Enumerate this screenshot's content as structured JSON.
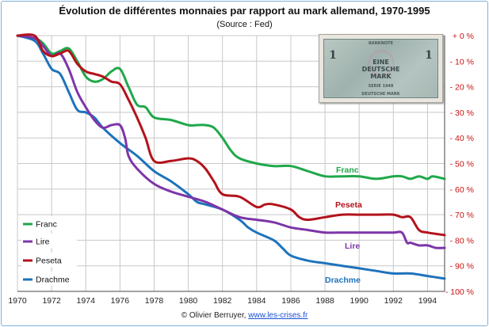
{
  "header": {
    "title": "Évolution de différentes monnaies par rapport au mark allemand, 1970-1995",
    "subtitle": "(Source : Fed)"
  },
  "footer": {
    "credit": "© Olivier Berruyer, ",
    "link": "www.les-crises.fr"
  },
  "banknote": {
    "header_text": "BANKNOTE",
    "line1": "EINE",
    "line2": "DEUTSCHE",
    "line3": "MARK",
    "series": "SERIE 1948",
    "bottom_text": "DEUTSCHE MARK",
    "numeral": "1"
  },
  "colors": {
    "Franc": "#1fa84a",
    "Lire": "#7d35a8",
    "Peseta": "#b3121b",
    "Drachme": "#1e73bb",
    "axis_right": "#cc1111",
    "grid": "#c8c8c8"
  },
  "chart_data": {
    "type": "line",
    "title": "Évolution de différentes monnaies par rapport au mark allemand, 1970-1995",
    "subtitle": "(Source : Fed)",
    "xlabel": "",
    "ylabel": "",
    "xlim": [
      1970,
      1995
    ],
    "ylim": [
      -100,
      0
    ],
    "grid": true,
    "legend_position": "left",
    "x_ticks": [
      "1970",
      "1972",
      "1974",
      "1976",
      "1978",
      "1980",
      "1982",
      "1984",
      "1986",
      "1988",
      "1990",
      "1992",
      "1994"
    ],
    "y_ticks": [
      "+ 0 %",
      "- 10 %",
      "- 20 %",
      "- 30 %",
      "- 40 %",
      "- 50 %",
      "- 60 %",
      "- 70 %",
      "- 80 %",
      "- 90 %",
      "- 100 %"
    ],
    "y_tick_values": [
      0,
      -10,
      -20,
      -30,
      -40,
      -50,
      -60,
      -70,
      -80,
      -90,
      -100
    ],
    "legend": [
      "Franc",
      "Lire",
      "Peseta",
      "Drachme"
    ],
    "series": [
      {
        "name": "Franc",
        "x": [
          1970,
          1971,
          1971.5,
          1972,
          1972.5,
          1973,
          1973.5,
          1974,
          1974.5,
          1975,
          1975.5,
          1976,
          1976.5,
          1977,
          1977.5,
          1978,
          1979,
          1980,
          1980.5,
          1981,
          1981.5,
          1982,
          1982.5,
          1983,
          1984,
          1985,
          1986,
          1987,
          1988,
          1989,
          1990,
          1991,
          1992,
          1992.5,
          1993,
          1993.5,
          1994,
          1994.3,
          1995
        ],
        "y": [
          0,
          -1,
          -3,
          -7,
          -6,
          -5,
          -10,
          -16,
          -18,
          -17,
          -14,
          -13,
          -20,
          -27,
          -28,
          -32,
          -33,
          -35,
          -35,
          -35,
          -36,
          -40,
          -45,
          -48,
          -50,
          -51,
          -51,
          -53,
          -55,
          -55,
          -55,
          -56,
          -55,
          -55,
          -56,
          -55,
          -56,
          -55,
          -56
        ]
      },
      {
        "name": "Lire",
        "x": [
          1970,
          1971,
          1971.5,
          1972,
          1972.5,
          1973,
          1973.5,
          1974,
          1974.5,
          1975,
          1975.5,
          1976,
          1976.3,
          1976.5,
          1977,
          1978,
          1979,
          1980,
          1981,
          1982,
          1983,
          1984,
          1985,
          1986,
          1987,
          1988,
          1989,
          1990,
          1991,
          1992,
          1992.5,
          1992.8,
          1993,
          1993.5,
          1994,
          1994.5,
          1995
        ],
        "y": [
          0,
          -1,
          -4,
          -8,
          -7,
          -13,
          -22,
          -28,
          -33,
          -36,
          -35,
          -35,
          -40,
          -47,
          -52,
          -58,
          -61,
          -63,
          -65,
          -68,
          -71,
          -72,
          -73,
          -75,
          -76,
          -77,
          -77,
          -77,
          -77,
          -77,
          -77,
          -81,
          -81,
          -82,
          -82,
          -83,
          -83
        ]
      },
      {
        "name": "Peseta",
        "x": [
          1970,
          1971,
          1971.5,
          1972,
          1972.5,
          1973,
          1973.5,
          1974,
          1974.5,
          1975,
          1975.5,
          1976,
          1976.5,
          1977,
          1977.5,
          1978,
          1979,
          1980,
          1980.5,
          1981,
          1981.5,
          1982,
          1983,
          1984,
          1984.5,
          1985,
          1986,
          1986.5,
          1987,
          1988,
          1989,
          1990,
          1991,
          1992,
          1992.5,
          1993,
          1993.5,
          1994,
          1995
        ],
        "y": [
          0,
          0,
          -6,
          -8,
          -7,
          -6,
          -11,
          -14,
          -15,
          -16,
          -18,
          -19,
          -25,
          -32,
          -40,
          -49,
          -49,
          -48,
          -49,
          -52,
          -57,
          -62,
          -63,
          -67,
          -66,
          -66,
          -68,
          -71,
          -72,
          -71,
          -70,
          -70,
          -70,
          -70,
          -71,
          -71,
          -76,
          -77,
          -78
        ]
      },
      {
        "name": "Drachme",
        "x": [
          1970,
          1971,
          1971.5,
          1972,
          1972.5,
          1973,
          1973.5,
          1974,
          1974.5,
          1975,
          1976,
          1977,
          1978,
          1979,
          1980,
          1980.5,
          1981,
          1982,
          1983,
          1983.5,
          1984,
          1985,
          1985.5,
          1986,
          1987,
          1988,
          1989,
          1990,
          1991,
          1992,
          1993,
          1994,
          1995
        ],
        "y": [
          0,
          -2,
          -7,
          -13,
          -15,
          -22,
          -29,
          -30,
          -32,
          -36,
          -42,
          -47,
          -53,
          -57,
          -62,
          -65,
          -66,
          -68,
          -72,
          -75,
          -77,
          -80,
          -83,
          -86,
          -88,
          -89,
          -90,
          -91,
          -92,
          -93,
          -93,
          -94,
          -95
        ]
      }
    ],
    "annotations": [
      "Franc",
      "Peseta",
      "Lire",
      "Drachme"
    ]
  }
}
